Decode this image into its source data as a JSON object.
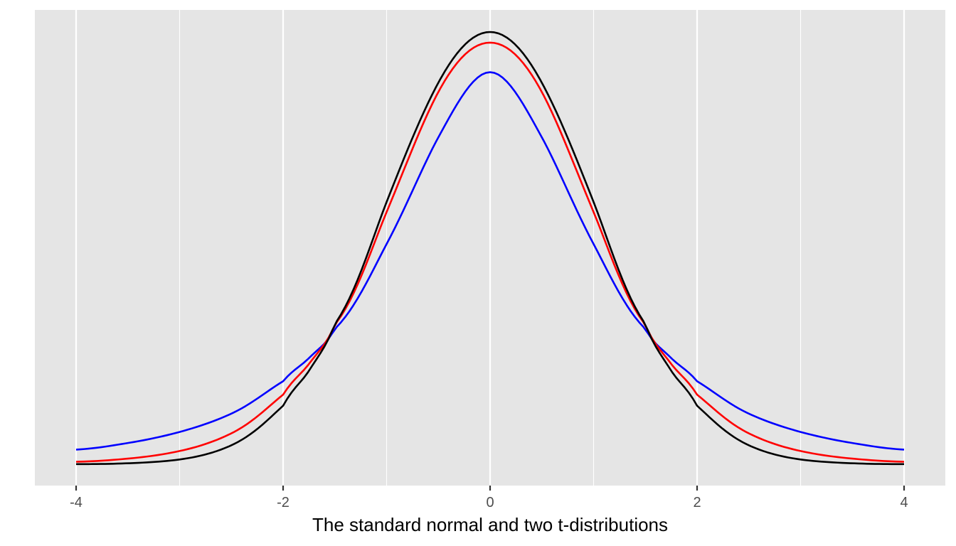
{
  "chart_data": {
    "type": "line",
    "title": "",
    "xlabel": "The standard normal and two t-distributions",
    "ylabel": "",
    "xlim": [
      -4,
      4
    ],
    "ylim": [
      0,
      0.41
    ],
    "x_ticks": [
      -4,
      -2,
      0,
      2,
      4
    ],
    "x_tick_labels": [
      "-4",
      "-2",
      "0",
      "2",
      "4"
    ],
    "x_minor_gridlines": [
      -3,
      -1,
      1,
      3
    ],
    "y_ticks": [],
    "grid": true,
    "legend": "none",
    "background": "#e5e5e5",
    "series": [
      {
        "color": "#0000ff",
        "x": [
          -4,
          -3.5,
          -3,
          -2.5,
          -2,
          -1.75,
          -1.5,
          -1,
          -0.5,
          0,
          0.5,
          1,
          1.5,
          1.75,
          2,
          2.5,
          3,
          3.5,
          4
        ],
        "y": [
          0.0135,
          0.0196,
          0.0298,
          0.0467,
          0.0766,
          0.098,
          0.125,
          0.2032,
          0.3017,
          0.3618,
          0.3017,
          0.2032,
          0.125,
          0.098,
          0.0766,
          0.0467,
          0.0298,
          0.0196,
          0.0135
        ]
      },
      {
        "color": "#ff0000",
        "x": [
          -4,
          -3.5,
          -3,
          -2.5,
          -2,
          -1.75,
          -1.5,
          -1,
          -0.5,
          0,
          0.5,
          1,
          1.5,
          1.75,
          2,
          2.5,
          3,
          3.5,
          4
        ],
        "y": [
          0.0023,
          0.0052,
          0.0122,
          0.0285,
          0.0642,
          0.0926,
          0.1288,
          0.2327,
          0.3435,
          0.3891,
          0.3435,
          0.2327,
          0.1288,
          0.0926,
          0.0642,
          0.0285,
          0.0122,
          0.0052,
          0.0023
        ]
      },
      {
        "color": "#000000",
        "x": [
          -4,
          -3.5,
          -3,
          -2.5,
          -2,
          -1.75,
          -1.5,
          -1,
          -0.5,
          0,
          0.5,
          1,
          1.5,
          1.75,
          2,
          2.5,
          3,
          3.5,
          4
        ],
        "y": [
          0.0001,
          0.0009,
          0.0044,
          0.0175,
          0.054,
          0.0863,
          0.1295,
          0.242,
          0.3521,
          0.3989,
          0.3521,
          0.242,
          0.1295,
          0.0863,
          0.054,
          0.0175,
          0.0044,
          0.0009,
          0.0001
        ]
      }
    ]
  }
}
